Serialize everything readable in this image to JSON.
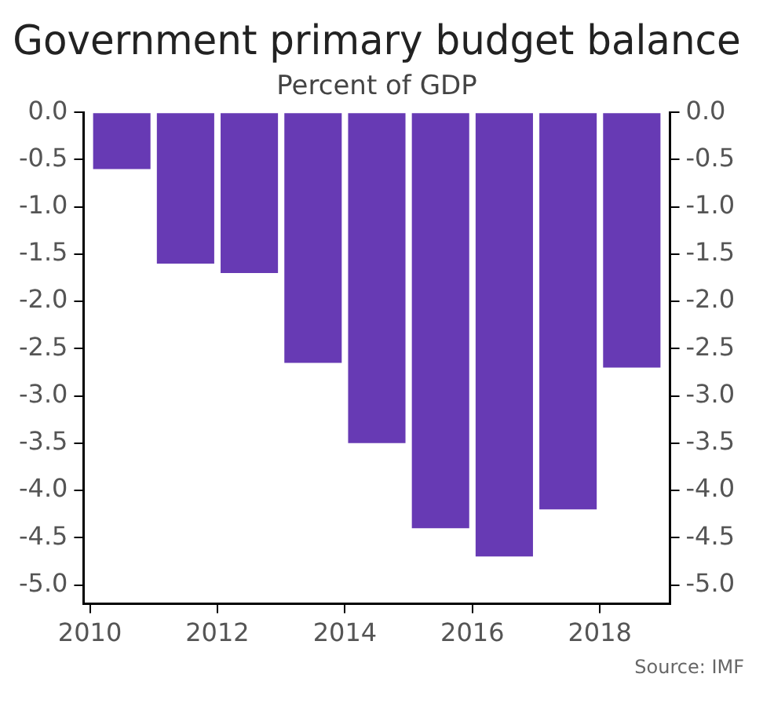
{
  "chart_data": {
    "type": "bar",
    "title": "Government primary budget balance",
    "subtitle": "Percent of GDP",
    "x": [
      2010.5,
      2011.5,
      2012.5,
      2013.5,
      2014.5,
      2015.5,
      2016.5,
      2017.5,
      2018.5
    ],
    "values": [
      -0.6,
      -1.6,
      -1.7,
      -2.65,
      -3.5,
      -4.4,
      -4.7,
      -4.2,
      -2.7
    ],
    "color": "#673ab4",
    "xlim": [
      2009.9,
      2019.1
    ],
    "xticks": [
      2010,
      2012,
      2014,
      2016,
      2018
    ],
    "ylim": [
      -5.2,
      0
    ],
    "yticks": [
      {
        "value": 0,
        "label": "0.0"
      },
      -0.5,
      {
        "value": -1,
        "label": "-1.0"
      },
      -1.5,
      {
        "value": -2,
        "label": "-2.0"
      },
      -2.5,
      {
        "value": -3,
        "label": "-3.0"
      },
      -3.5,
      {
        "value": -4,
        "label": "-4.0"
      },
      -4.5,
      {
        "value": -5,
        "label": "-5.0"
      }
    ],
    "y2lim": [
      -5.2,
      0
    ],
    "y2ticks": [
      {
        "value": 0,
        "label": "0.0"
      },
      -0.5,
      {
        "value": -1,
        "label": "-1.0"
      },
      -1.5,
      {
        "value": -2,
        "label": "-2.0"
      },
      -2.5,
      {
        "value": -3,
        "label": "-3.0"
      },
      -3.5,
      {
        "value": -4,
        "label": "-4.0"
      },
      -4.5,
      {
        "value": -5,
        "label": "-5.0"
      }
    ],
    "grid": false,
    "legend": false,
    "annotations": [
      "Source: IMF"
    ]
  }
}
